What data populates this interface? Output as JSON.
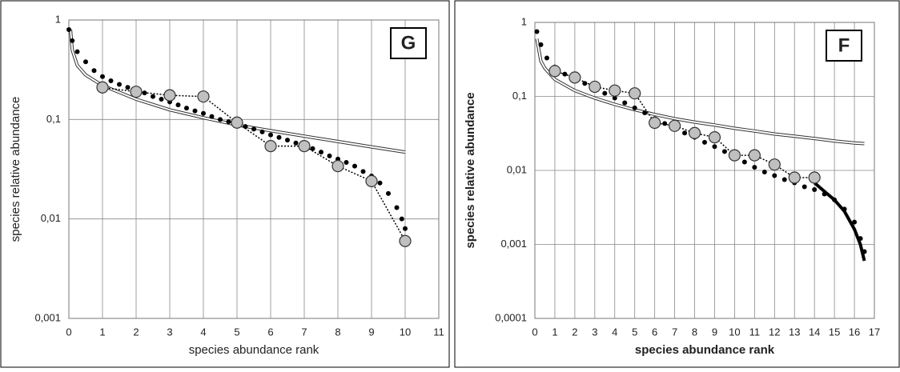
{
  "chart_data": [
    {
      "type": "line",
      "annotation": "G",
      "bold_labels": false,
      "xlabel": "species abundance rank",
      "ylabel": "species relative abundance",
      "xlim": [
        0,
        11
      ],
      "xticks": [
        0,
        1,
        2,
        3,
        4,
        5,
        6,
        7,
        8,
        9,
        10,
        11
      ],
      "ylim": [
        0.001,
        1
      ],
      "log_y": true,
      "grid": true,
      "yticks": [
        {
          "value": 0.001,
          "label": "0,001"
        },
        {
          "value": 0.01,
          "label": "0,01"
        },
        {
          "value": 0.1,
          "label": "0,1"
        },
        1
      ],
      "series": [
        {
          "style": "double",
          "color": "#333333",
          "x": [
            0.05,
            0.1,
            0.25,
            0.5,
            1,
            2,
            3,
            4,
            5,
            6,
            7,
            8,
            9,
            10
          ],
          "values": [
            0.8,
            0.5,
            0.35,
            0.28,
            0.22,
            0.16,
            0.125,
            0.104,
            0.088,
            0.077,
            0.068,
            0.06,
            0.053,
            0.047
          ]
        },
        {
          "style": "dots",
          "color": "#000000",
          "x": [
            0,
            0.1,
            0.25,
            0.5,
            0.75,
            1,
            1.25,
            1.5,
            1.75,
            2,
            2.25,
            2.5,
            2.75,
            3,
            3.25,
            3.5,
            3.75,
            4,
            4.25,
            4.5,
            4.75,
            5,
            5.25,
            5.5,
            5.75,
            6,
            6.25,
            6.5,
            6.75,
            7,
            7.25,
            7.5,
            7.75,
            8,
            8.25,
            8.5,
            8.75,
            9,
            9.25,
            9.5,
            9.75,
            9.9,
            10
          ],
          "values": [
            0.8,
            0.62,
            0.48,
            0.38,
            0.31,
            0.27,
            0.245,
            0.225,
            0.21,
            0.2,
            0.185,
            0.17,
            0.16,
            0.15,
            0.14,
            0.13,
            0.122,
            0.115,
            0.107,
            0.1,
            0.095,
            0.09,
            0.085,
            0.08,
            0.075,
            0.07,
            0.066,
            0.062,
            0.058,
            0.055,
            0.051,
            0.047,
            0.043,
            0.04,
            0.037,
            0.034,
            0.03,
            0.027,
            0.023,
            0.018,
            0.013,
            0.01,
            0.008
          ]
        },
        {
          "style": "markers",
          "color": "#c0c0c0",
          "x": [
            1,
            2,
            3,
            4,
            5,
            6,
            7,
            8,
            9,
            10
          ],
          "values": [
            0.21,
            0.19,
            0.175,
            0.17,
            0.093,
            0.054,
            0.054,
            0.034,
            0.024,
            0.006
          ]
        }
      ]
    },
    {
      "type": "line",
      "annotation": "F",
      "bold_labels": true,
      "xlabel": "species abundance rank",
      "ylabel": "species relative abundance",
      "xlim": [
        0,
        17
      ],
      "xticks": [
        0,
        1,
        2,
        3,
        4,
        5,
        6,
        7,
        8,
        9,
        10,
        11,
        12,
        13,
        14,
        15,
        16,
        17
      ],
      "ylim": [
        0.0001,
        1
      ],
      "log_y": true,
      "grid": true,
      "yticks": [
        {
          "value": 0.0001,
          "label": "0,0001"
        },
        {
          "value": 0.001,
          "label": "0,001"
        },
        {
          "value": 0.01,
          "label": "0,01"
        },
        {
          "value": 0.1,
          "label": "0,1"
        },
        1
      ],
      "series": [
        {
          "style": "double",
          "color": "#333333",
          "x": [
            0.1,
            0.3,
            0.5,
            1,
            2,
            3,
            4,
            5,
            6,
            7,
            8,
            9,
            10,
            11,
            12,
            13,
            14,
            15,
            16,
            16.5
          ],
          "values": [
            0.6,
            0.3,
            0.24,
            0.17,
            0.12,
            0.095,
            0.078,
            0.066,
            0.057,
            0.05,
            0.045,
            0.041,
            0.037,
            0.034,
            0.031,
            0.029,
            0.027,
            0.025,
            0.0235,
            0.023
          ]
        },
        {
          "style": "dots",
          "color": "#000000",
          "x": [
            0.1,
            0.3,
            0.6,
            1,
            1.5,
            2,
            2.5,
            3,
            3.5,
            4,
            4.5,
            5,
            5.5,
            6,
            6.5,
            7,
            7.5,
            8,
            8.5,
            9,
            9.5,
            10,
            10.5,
            11,
            11.5,
            12,
            12.5,
            13,
            13.5,
            14,
            14.5,
            15,
            15.5,
            16,
            16.3,
            16.5
          ],
          "values": [
            0.75,
            0.5,
            0.33,
            0.25,
            0.2,
            0.17,
            0.15,
            0.13,
            0.11,
            0.095,
            0.082,
            0.07,
            0.06,
            0.05,
            0.043,
            0.037,
            0.032,
            0.028,
            0.024,
            0.021,
            0.018,
            0.015,
            0.013,
            0.011,
            0.0095,
            0.0085,
            0.0075,
            0.0068,
            0.006,
            0.0055,
            0.0048,
            0.004,
            0.003,
            0.002,
            0.0012,
            0.0008
          ]
        },
        {
          "style": "thick",
          "color": "#000000",
          "x": [
            14,
            14.5,
            15,
            15.5,
            16,
            16.3,
            16.5
          ],
          "values": [
            0.0068,
            0.0052,
            0.004,
            0.0028,
            0.0016,
            0.001,
            0.0006
          ]
        },
        {
          "style": "markers",
          "color": "#c0c0c0",
          "x": [
            1,
            2,
            3,
            4,
            5,
            6,
            7,
            8,
            9,
            10,
            11,
            12,
            13,
            14
          ],
          "values": [
            0.22,
            0.18,
            0.135,
            0.12,
            0.11,
            0.044,
            0.04,
            0.032,
            0.028,
            0.016,
            0.016,
            0.012,
            0.008,
            0.008
          ]
        }
      ]
    }
  ]
}
